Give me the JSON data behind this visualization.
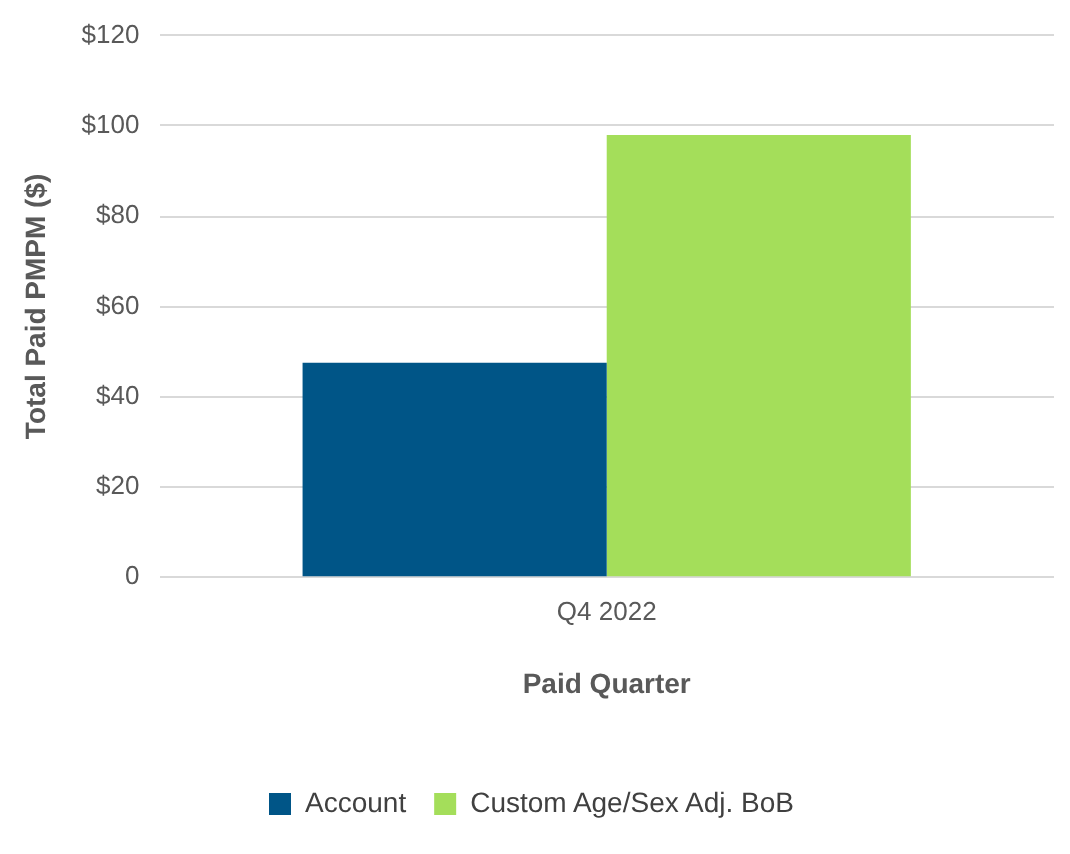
{
  "chart_data": {
    "type": "bar",
    "xlabel": "Paid Quarter",
    "ylabel": "Total Paid PMPM ($)",
    "categories": [
      "Q4 2022"
    ],
    "series": [
      {
        "name": "Account",
        "color": "#005587",
        "values": [
          47.5
        ]
      },
      {
        "name": "Custom Age/Sex Adj. BoB",
        "color": "#a4de5a",
        "values": [
          98
        ]
      }
    ],
    "ylim": [
      0,
      120
    ],
    "yticks": [
      0,
      {
        "value": 20,
        "label": "$20"
      },
      {
        "value": 40,
        "label": "$40"
      },
      {
        "value": 60,
        "label": "$60"
      },
      {
        "value": 80,
        "label": "$80"
      },
      {
        "value": 100,
        "label": "$100"
      },
      {
        "value": 120,
        "label": "$120"
      }
    ],
    "grid": "y",
    "legend": "bottom"
  }
}
